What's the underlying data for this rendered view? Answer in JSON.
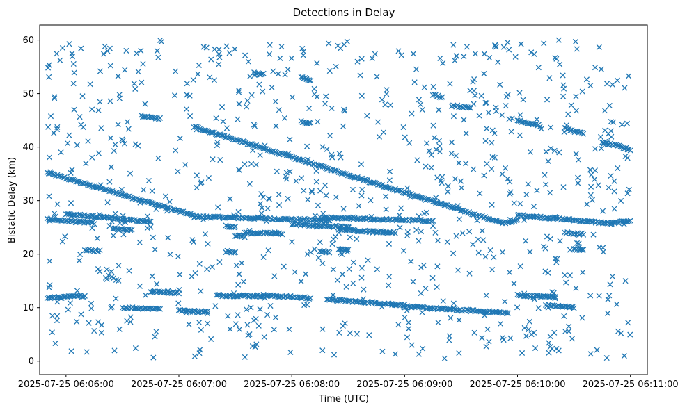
{
  "chart_data": {
    "type": "scatter",
    "title": "Detections in Delay",
    "xlabel": "Time (UTC)",
    "ylabel": "Bistatic Delay (km)",
    "x_unit": "time (UTC)",
    "xlim": [
      "2025-07-25 06:05:46",
      "2025-07-25 06:11:09"
    ],
    "ylim": [
      -2.5,
      62.8
    ],
    "grid": false,
    "marker": "x",
    "color": "#1f77b4",
    "x_ticks": [
      {
        "time": "2025-07-25 06:06:00",
        "label": "2025-07-25 06:06:00"
      },
      {
        "time": "2025-07-25 06:07:00",
        "label": "2025-07-25 06:07:00"
      },
      {
        "time": "2025-07-25 06:08:00",
        "label": "2025-07-25 06:08:00"
      },
      {
        "time": "2025-07-25 06:09:00",
        "label": "2025-07-25 06:09:00"
      },
      {
        "time": "2025-07-25 06:10:00",
        "label": "2025-07-25 06:10:00"
      },
      {
        "time": "2025-07-25 06:11:00",
        "label": "2025-07-25 06:11:00"
      }
    ],
    "y_ticks": [
      {
        "value": 0,
        "label": "0"
      },
      {
        "value": 10,
        "label": "10"
      },
      {
        "value": 20,
        "label": "20"
      },
      {
        "value": 30,
        "label": "30"
      },
      {
        "value": 40,
        "label": "40"
      },
      {
        "value": 50,
        "label": "50"
      },
      {
        "value": 60,
        "label": "60"
      }
    ],
    "tracks": [
      {
        "x_start": "2025-07-25 06:05:50",
        "x_end": "2025-07-25 06:07:10",
        "y_start": 35.2,
        "y_end": 27.0
      },
      {
        "x_start": "2025-07-25 06:07:10",
        "x_end": "2025-07-25 06:08:20",
        "y_start": 27.0,
        "y_end": 26.3
      },
      {
        "x_start": "2025-07-25 06:06:00",
        "x_end": "2025-07-25 06:06:45",
        "y_start": 27.5,
        "y_end": 26.0
      },
      {
        "x_start": "2025-07-25 06:07:08",
        "x_end": "2025-07-25 06:09:52",
        "y_start": 43.8,
        "y_end": 25.8
      },
      {
        "x_start": "2025-07-25 06:09:52",
        "x_end": "2025-07-25 06:10:00",
        "y_start": 25.8,
        "y_end": 26.3
      },
      {
        "x_start": "2025-07-25 06:10:00",
        "x_end": "2025-07-25 06:10:50",
        "y_start": 27.3,
        "y_end": 25.7
      },
      {
        "x_start": "2025-07-25 06:10:50",
        "x_end": "2025-07-25 06:11:00",
        "y_start": 25.7,
        "y_end": 26.3
      },
      {
        "x_start": "2025-07-25 06:05:50",
        "x_end": "2025-07-25 06:06:15",
        "y_start": 26.5,
        "y_end": 25.8
      },
      {
        "x_start": "2025-07-25 06:08:15",
        "x_end": "2025-07-25 06:09:15",
        "y_start": 26.8,
        "y_end": 26.2
      },
      {
        "x_start": "2025-07-25 06:05:50",
        "x_end": "2025-07-25 06:06:10",
        "y_start": 11.8,
        "y_end": 12.2
      },
      {
        "x_start": "2025-07-25 06:06:30",
        "x_end": "2025-07-25 06:06:50",
        "y_start": 10.0,
        "y_end": 9.8
      },
      {
        "x_start": "2025-07-25 06:06:45",
        "x_end": "2025-07-25 06:07:00",
        "y_start": 13.0,
        "y_end": 12.8
      },
      {
        "x_start": "2025-07-25 06:07:00",
        "x_end": "2025-07-25 06:07:15",
        "y_start": 9.5,
        "y_end": 9.2
      },
      {
        "x_start": "2025-07-25 06:07:20",
        "x_end": "2025-07-25 06:07:45",
        "y_start": 12.3,
        "y_end": 12.2
      },
      {
        "x_start": "2025-07-25 06:07:45",
        "x_end": "2025-07-25 06:08:10",
        "y_start": 12.3,
        "y_end": 11.8
      },
      {
        "x_start": "2025-07-25 06:08:20",
        "x_end": "2025-07-25 06:09:00",
        "y_start": 11.5,
        "y_end": 10.5
      },
      {
        "x_start": "2025-07-25 06:09:00",
        "x_end": "2025-07-25 06:09:55",
        "y_start": 10.2,
        "y_end": 9.0
      },
      {
        "x_start": "2025-07-25 06:10:00",
        "x_end": "2025-07-25 06:10:20",
        "y_start": 12.3,
        "y_end": 12.0
      },
      {
        "x_start": "2025-07-25 06:10:15",
        "x_end": "2025-07-25 06:10:30",
        "y_start": 10.5,
        "y_end": 10.0
      },
      {
        "x_start": "2025-07-25 06:06:10",
        "x_end": "2025-07-25 06:06:18",
        "y_start": 20.8,
        "y_end": 20.6
      },
      {
        "x_start": "2025-07-25 06:06:25",
        "x_end": "2025-07-25 06:06:35",
        "y_start": 24.7,
        "y_end": 24.5
      },
      {
        "x_start": "2025-07-25 06:07:25",
        "x_end": "2025-07-25 06:07:30",
        "y_start": 25.3,
        "y_end": 25.0
      },
      {
        "x_start": "2025-07-25 06:07:25",
        "x_end": "2025-07-25 06:07:30",
        "y_start": 20.5,
        "y_end": 20.4
      },
      {
        "x_start": "2025-07-25 06:07:30",
        "x_end": "2025-07-25 06:07:35",
        "y_start": 23.5,
        "y_end": 23.3
      },
      {
        "x_start": "2025-07-25 06:07:35",
        "x_end": "2025-07-25 06:07:55",
        "y_start": 24.0,
        "y_end": 23.8
      },
      {
        "x_start": "2025-07-25 06:08:00",
        "x_end": "2025-07-25 06:08:30",
        "y_start": 25.6,
        "y_end": 25.0
      },
      {
        "x_start": "2025-07-25 06:08:15",
        "x_end": "2025-07-25 06:08:20",
        "y_start": 20.6,
        "y_end": 20.4
      },
      {
        "x_start": "2025-07-25 06:08:25",
        "x_end": "2025-07-25 06:08:55",
        "y_start": 24.6,
        "y_end": 24.0
      },
      {
        "x_start": "2025-07-25 06:08:25",
        "x_end": "2025-07-25 06:08:30",
        "y_start": 21.0,
        "y_end": 20.8
      },
      {
        "x_start": "2025-07-25 06:10:25",
        "x_end": "2025-07-25 06:10:35",
        "y_start": 24.0,
        "y_end": 23.7
      },
      {
        "x_start": "2025-07-25 06:10:30",
        "x_end": "2025-07-25 06:10:35",
        "y_start": 21.0,
        "y_end": 20.7
      },
      {
        "x_start": "2025-07-25 06:06:40",
        "x_end": "2025-07-25 06:06:50",
        "y_start": 45.8,
        "y_end": 45.3
      },
      {
        "x_start": "2025-07-25 06:07:40",
        "x_end": "2025-07-25 06:07:45",
        "y_start": 53.8,
        "y_end": 53.6
      },
      {
        "x_start": "2025-07-25 06:08:05",
        "x_end": "2025-07-25 06:08:10",
        "y_start": 53.0,
        "y_end": 52.6
      },
      {
        "x_start": "2025-07-25 06:08:05",
        "x_end": "2025-07-25 06:08:10",
        "y_start": 44.8,
        "y_end": 44.4
      },
      {
        "x_start": "2025-07-25 06:09:15",
        "x_end": "2025-07-25 06:09:20",
        "y_start": 49.8,
        "y_end": 49.3
      },
      {
        "x_start": "2025-07-25 06:09:25",
        "x_end": "2025-07-25 06:09:35",
        "y_start": 47.8,
        "y_end": 47.3
      },
      {
        "x_start": "2025-07-25 06:10:00",
        "x_end": "2025-07-25 06:10:12",
        "y_start": 45.0,
        "y_end": 44.0
      },
      {
        "x_start": "2025-07-25 06:10:25",
        "x_end": "2025-07-25 06:10:35",
        "y_start": 43.5,
        "y_end": 42.5
      },
      {
        "x_start": "2025-07-25 06:10:45",
        "x_end": "2025-07-25 06:11:00",
        "y_start": 41.0,
        "y_end": 39.5
      }
    ],
    "background_noise": {
      "x_range": [
        "2025-07-25 06:05:50",
        "2025-07-25 06:11:00"
      ],
      "y_range": [
        0.5,
        60
      ]
    }
  }
}
